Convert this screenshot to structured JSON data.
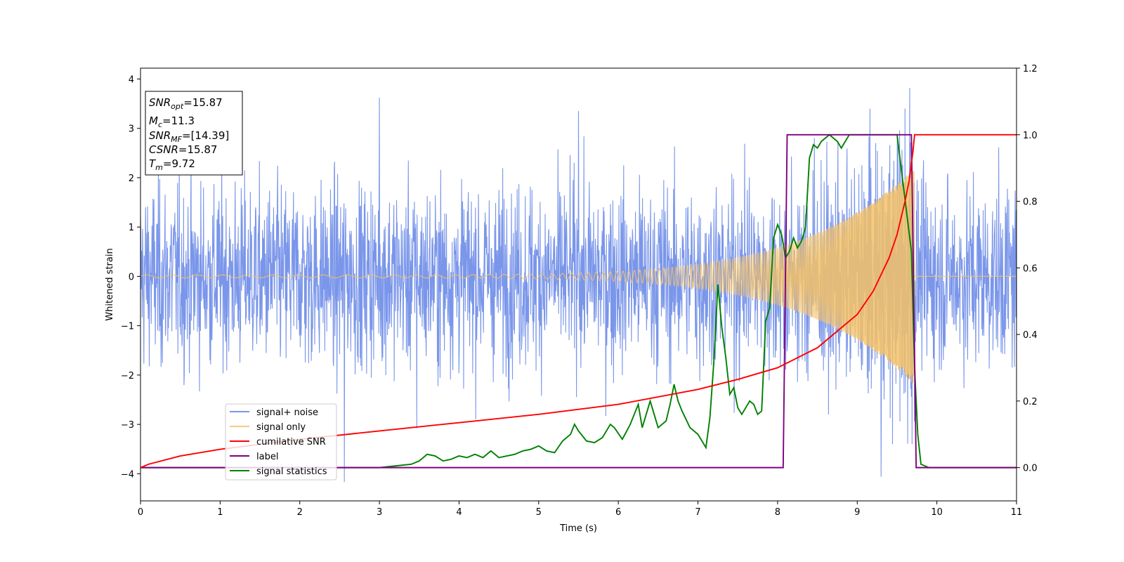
{
  "chart_data": {
    "type": "line",
    "xlabel": "Time (s)",
    "ylabel": "Whitened strain",
    "xlim": [
      0,
      11
    ],
    "ylim_left": [
      -4.55,
      4.22
    ],
    "ylim_right": [
      -0.1,
      1.2
    ],
    "x_ticks": [
      0,
      1,
      2,
      3,
      4,
      5,
      6,
      7,
      8,
      9,
      10,
      11
    ],
    "y_ticks_left": [
      -4,
      -3,
      -2,
      -1,
      0,
      1,
      2,
      3,
      4
    ],
    "y_ticks_right": [
      0.0,
      0.2,
      0.4,
      0.6,
      0.8,
      1.0,
      1.2
    ],
    "grid": false,
    "legend_position": "lower-left",
    "info_box": {
      "snr_opt": "=15.87",
      "mc": "=11.3",
      "snr_mf": "=[14.39]",
      "csnr": "=15.87",
      "tm": "=9.72"
    },
    "series": [
      {
        "name": "signal+ noise",
        "color": "#4169e1",
        "axis": "left",
        "description_kind": "noise",
        "noise_std": 0.92,
        "spikes": [
          [
            3.0,
            3.62
          ],
          [
            5.5,
            3.35
          ],
          [
            9.66,
            3.82
          ],
          [
            2.56,
            -4.17
          ],
          [
            9.3,
            -4.06
          ],
          [
            3.47,
            -3.08
          ]
        ]
      },
      {
        "name": "signal only",
        "color": "#f5c267",
        "axis": "left",
        "chirp": {
          "end_time": 9.72,
          "amp_start": 0.03,
          "amp_end": 2.2,
          "freq_start": 9,
          "freq_end": 60
        }
      },
      {
        "name": "cumilative SNR",
        "color": "#ff0000",
        "axis": "right",
        "x": [
          0,
          0.1,
          0.5,
          1,
          2,
          3,
          4,
          5,
          6,
          7,
          7.5,
          8,
          8.5,
          9,
          9.2,
          9.4,
          9.5,
          9.6,
          9.65,
          9.7,
          9.72,
          9.74,
          11
        ],
        "y": [
          0.0,
          0.01,
          0.035,
          0.055,
          0.085,
          0.11,
          0.135,
          0.16,
          0.19,
          0.235,
          0.265,
          0.3,
          0.36,
          0.46,
          0.53,
          0.63,
          0.7,
          0.8,
          0.86,
          0.95,
          1.0,
          1.0,
          1.0
        ]
      },
      {
        "name": "label",
        "color": "#800080",
        "axis": "right",
        "x": [
          0,
          8.07,
          8.12,
          9.68,
          9.74,
          11
        ],
        "y": [
          0,
          0,
          1,
          1,
          0,
          0
        ]
      },
      {
        "name": "signal statistics",
        "color": "#008000",
        "axis": "right",
        "x": [
          0,
          3.0,
          3.2,
          3.4,
          3.5,
          3.6,
          3.7,
          3.8,
          3.9,
          4.0,
          4.1,
          4.2,
          4.3,
          4.4,
          4.5,
          4.6,
          4.7,
          4.8,
          4.9,
          5.0,
          5.1,
          5.2,
          5.3,
          5.4,
          5.45,
          5.5,
          5.6,
          5.7,
          5.8,
          5.9,
          5.95,
          6.05,
          6.15,
          6.25,
          6.3,
          6.35,
          6.4,
          6.45,
          6.5,
          6.6,
          6.65,
          6.7,
          6.75,
          6.8,
          6.9,
          7.0,
          7.1,
          7.15,
          7.2,
          7.25,
          7.3,
          7.35,
          7.4,
          7.45,
          7.5,
          7.55,
          7.6,
          7.65,
          7.7,
          7.75,
          7.8,
          7.85,
          7.9,
          7.95,
          8.0,
          8.05,
          8.1,
          8.15,
          8.2,
          8.25,
          8.3,
          8.35,
          8.4,
          8.45,
          8.5,
          8.55,
          8.6,
          8.65,
          8.7,
          8.75,
          8.8,
          8.85,
          8.9,
          8.95,
          9.0,
          9.05,
          9.1,
          9.2,
          9.3,
          9.5,
          9.68,
          9.72,
          9.76,
          9.8,
          9.85,
          9.9,
          10.0,
          11.0
        ],
        "y": [
          0,
          0.0,
          0.005,
          0.01,
          0.02,
          0.04,
          0.035,
          0.02,
          0.025,
          0.035,
          0.03,
          0.04,
          0.03,
          0.05,
          0.03,
          0.035,
          0.04,
          0.05,
          0.055,
          0.065,
          0.05,
          0.045,
          0.08,
          0.1,
          0.13,
          0.11,
          0.08,
          0.075,
          0.09,
          0.13,
          0.12,
          0.085,
          0.13,
          0.19,
          0.12,
          0.16,
          0.2,
          0.16,
          0.12,
          0.14,
          0.19,
          0.25,
          0.2,
          0.17,
          0.12,
          0.1,
          0.06,
          0.15,
          0.32,
          0.55,
          0.42,
          0.33,
          0.22,
          0.24,
          0.18,
          0.16,
          0.18,
          0.2,
          0.19,
          0.16,
          0.17,
          0.44,
          0.48,
          0.69,
          0.73,
          0.7,
          0.63,
          0.65,
          0.69,
          0.66,
          0.68,
          0.72,
          0.93,
          0.97,
          0.96,
          0.98,
          0.99,
          1.0,
          0.99,
          0.98,
          0.96,
          0.98,
          1.0,
          1.0,
          1.0,
          1.0,
          1.0,
          1.0,
          1.0,
          1.0,
          0.65,
          0.3,
          0.1,
          0.01,
          0.005,
          0.0,
          0.0,
          0.0
        ]
      }
    ]
  }
}
